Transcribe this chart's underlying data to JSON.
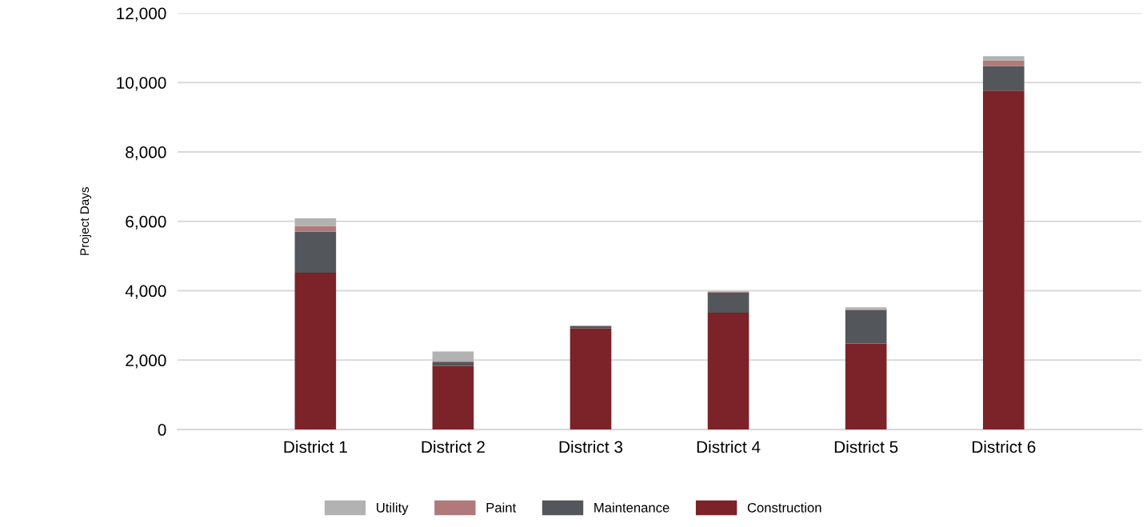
{
  "chart_data": {
    "type": "bar",
    "stacked": true,
    "ylabel": "Project Days",
    "categories": [
      "District 1",
      "District 2",
      "District 3",
      "District 4",
      "District 5",
      "District 6"
    ],
    "series": [
      {
        "name": "Construction",
        "color": "#7b2328",
        "values": [
          4520,
          1830,
          2910,
          3370,
          2480,
          9770
        ]
      },
      {
        "name": "Maintenance",
        "color": "#53565a",
        "values": [
          1180,
          110,
          70,
          580,
          960,
          700
        ]
      },
      {
        "name": "Paint",
        "color": "#b07a7a",
        "values": [
          160,
          20,
          10,
          30,
          30,
          170
        ]
      },
      {
        "name": "Utility",
        "color": "#b2b2b2",
        "values": [
          230,
          290,
          10,
          null,
          50,
          120
        ]
      }
    ],
    "ylim": [
      0,
      12000
    ],
    "yticks": [
      {
        "value": 0,
        "label": "0"
      },
      {
        "value": 2000,
        "label": "2,000"
      },
      {
        "value": 4000,
        "label": "4,000"
      },
      {
        "value": 6000,
        "label": "6,000"
      },
      {
        "value": 8000,
        "label": "8,000"
      },
      {
        "value": 10000,
        "label": "10,000"
      },
      {
        "value": 12000,
        "label": "12,000"
      }
    ],
    "grid": "y",
    "legend": "bottom"
  }
}
